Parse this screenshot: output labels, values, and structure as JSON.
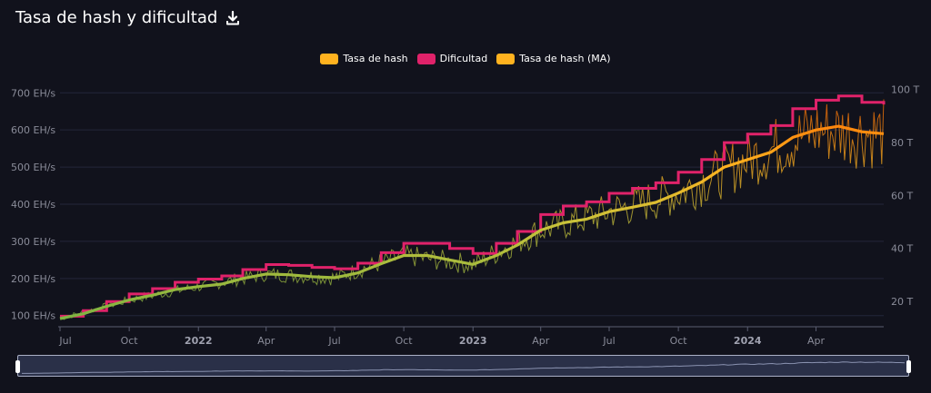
{
  "header": {
    "title": "Tasa de hash y dificultad",
    "download_icon": "download-icon"
  },
  "legend": [
    {
      "label": "Tasa de hash",
      "color": "#ffb21f"
    },
    {
      "label": "Dificultad",
      "color": "#e0226a"
    },
    {
      "label": "Tasa de hash (MA)",
      "color": "#ffb21f"
    }
  ],
  "chart_data": {
    "type": "line",
    "title": "Tasa de hash y dificultad",
    "x_tick_labels": [
      "Jul",
      "Oct",
      "2022",
      "Apr",
      "Jul",
      "Oct",
      "2023",
      "Apr",
      "Jul",
      "Oct",
      "2024",
      "Apr"
    ],
    "x_tick_bold": [
      false,
      false,
      true,
      false,
      false,
      false,
      true,
      false,
      false,
      false,
      true,
      false
    ],
    "x_range": [
      "2021-07-01",
      "2024-06-30"
    ],
    "y_left": {
      "ticks": [
        "100 EH/s",
        "200 EH/s",
        "300 EH/s",
        "400 EH/s",
        "500 EH/s",
        "600 EH/s",
        "700 EH/s"
      ],
      "min": 70,
      "max": 730
    },
    "y_right": {
      "ticks": [
        "20 T",
        "40 T",
        "60 T",
        "80 T",
        "100 T"
      ],
      "min": 10.4,
      "max": 103
    },
    "grid": true,
    "legend_position": "top-center",
    "gradient_colors": [
      "#7cb342",
      "#ffb21f",
      "#ff6a00"
    ],
    "series": [
      {
        "name": "Tasa de hash (MA)",
        "x": [
          "2021-07-01",
          "2021-08-01",
          "2021-09-01",
          "2021-10-01",
          "2021-11-01",
          "2021-12-01",
          "2022-01-01",
          "2022-02-01",
          "2022-03-01",
          "2022-04-01",
          "2022-05-01",
          "2022-06-01",
          "2022-07-01",
          "2022-08-01",
          "2022-09-01",
          "2022-10-01",
          "2022-11-01",
          "2022-12-01",
          "2023-01-01",
          "2023-02-01",
          "2023-03-01",
          "2023-04-01",
          "2023-05-01",
          "2023-06-01",
          "2023-07-01",
          "2023-08-01",
          "2023-09-01",
          "2023-10-01",
          "2023-11-01",
          "2023-12-01",
          "2024-01-01",
          "2024-02-01",
          "2024-03-01",
          "2024-04-01",
          "2024-05-01",
          "2024-06-01",
          "2024-06-30"
        ],
        "values": [
          92,
          105,
          125,
          142,
          155,
          170,
          178,
          185,
          200,
          212,
          210,
          205,
          202,
          215,
          240,
          262,
          262,
          250,
          238,
          262,
          290,
          330,
          350,
          360,
          380,
          392,
          405,
          430,
          460,
          500,
          520,
          540,
          580,
          600,
          610,
          595,
          590
        ]
      },
      {
        "name": "Tasa de hash",
        "x": [
          "2021-07-01",
          "2021-10-01",
          "2022-01-01",
          "2022-04-01",
          "2022-07-01",
          "2022-10-01",
          "2023-01-01",
          "2023-04-01",
          "2023-07-01",
          "2023-10-01",
          "2024-01-01",
          "2024-04-01",
          "2024-06-30"
        ],
        "values": [
          92,
          142,
          178,
          212,
          202,
          262,
          238,
          330,
          380,
          430,
          520,
          600,
          590
        ],
        "noise_band_percent": 12
      },
      {
        "name": "Dificultad",
        "x": [
          "2021-07-01",
          "2021-08-01",
          "2021-09-01",
          "2021-10-01",
          "2021-11-01",
          "2021-12-01",
          "2022-01-01",
          "2022-02-01",
          "2022-03-01",
          "2022-04-01",
          "2022-05-01",
          "2022-06-01",
          "2022-07-01",
          "2022-08-01",
          "2022-09-01",
          "2022-10-01",
          "2022-11-01",
          "2022-12-01",
          "2023-01-01",
          "2023-02-01",
          "2023-03-01",
          "2023-04-01",
          "2023-05-01",
          "2023-06-01",
          "2023-07-01",
          "2023-08-01",
          "2023-09-01",
          "2023-10-01",
          "2023-11-01",
          "2023-12-01",
          "2024-01-01",
          "2024-02-01",
          "2024-03-01",
          "2024-04-01",
          "2024-05-01",
          "2024-06-01",
          "2024-06-30"
        ],
        "values": [
          14.4,
          16.5,
          19.9,
          22.8,
          24.8,
          27.2,
          28.4,
          29.6,
          32.0,
          33.9,
          33.6,
          32.8,
          32.3,
          34.4,
          38.4,
          41.9,
          41.9,
          40.0,
          38.1,
          41.9,
          46.4,
          52.8,
          56.0,
          57.6,
          60.8,
          62.7,
          64.8,
          68.8,
          73.6,
          80.0,
          83.2,
          86.4,
          92.8,
          96.0,
          97.6,
          95.2,
          94.4
        ],
        "unit": "T"
      }
    ]
  }
}
